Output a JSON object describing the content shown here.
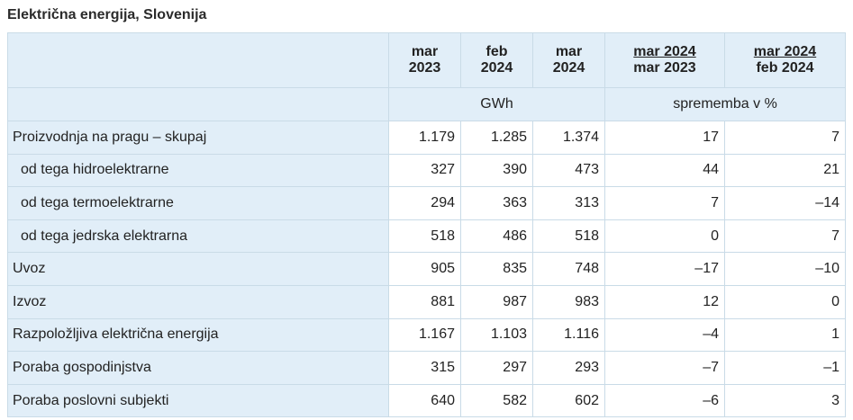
{
  "title": "Električna energija, Slovenija",
  "header": {
    "col1_line1": "mar",
    "col1_line2": "2023",
    "col2_line1": "feb",
    "col2_line2": "2024",
    "col3_line1": "mar",
    "col3_line2": "2024",
    "col4_line1": "mar 2024",
    "col4_line2": "mar 2023",
    "col5_line1": "mar 2024",
    "col5_line2": "feb 2024",
    "unit_gwh": "GWh",
    "unit_change": "sprememba v %"
  },
  "rows": [
    {
      "label": "Proizvodnja na pragu – skupaj",
      "mar2023": "1.179",
      "feb2024": "1.285",
      "mar2024": "1.374",
      "chg_yoy": "17",
      "chg_mom": "7"
    },
    {
      "label": "od tega hidroelektrarne",
      "mar2023": "327",
      "feb2024": "390",
      "mar2024": "473",
      "chg_yoy": "44",
      "chg_mom": "21"
    },
    {
      "label": "od tega termoelektrarne",
      "mar2023": "294",
      "feb2024": "363",
      "mar2024": "313",
      "chg_yoy": "7",
      "chg_mom": "–14"
    },
    {
      "label": "od tega jedrska elektrarna",
      "mar2023": "518",
      "feb2024": "486",
      "mar2024": "518",
      "chg_yoy": "0",
      "chg_mom": "7"
    },
    {
      "label": "Uvoz",
      "mar2023": "905",
      "feb2024": "835",
      "mar2024": "748",
      "chg_yoy": "–17",
      "chg_mom": "–10"
    },
    {
      "label": "Izvoz",
      "mar2023": "881",
      "feb2024": "987",
      "mar2024": "983",
      "chg_yoy": "12",
      "chg_mom": "0"
    },
    {
      "label": "Razpoložljiva električna energija",
      "mar2023": "1.167",
      "feb2024": "1.103",
      "mar2024": "1.116",
      "chg_yoy": "–4",
      "chg_mom": "1"
    },
    {
      "label": "Poraba gospodinjstva",
      "mar2023": "315",
      "feb2024": "297",
      "mar2024": "293",
      "chg_yoy": "–7",
      "chg_mom": "–1"
    },
    {
      "label": "Poraba poslovni subjekti",
      "mar2023": "640",
      "feb2024": "582",
      "mar2024": "602",
      "chg_yoy": "–6",
      "chg_mom": "3"
    }
  ]
}
